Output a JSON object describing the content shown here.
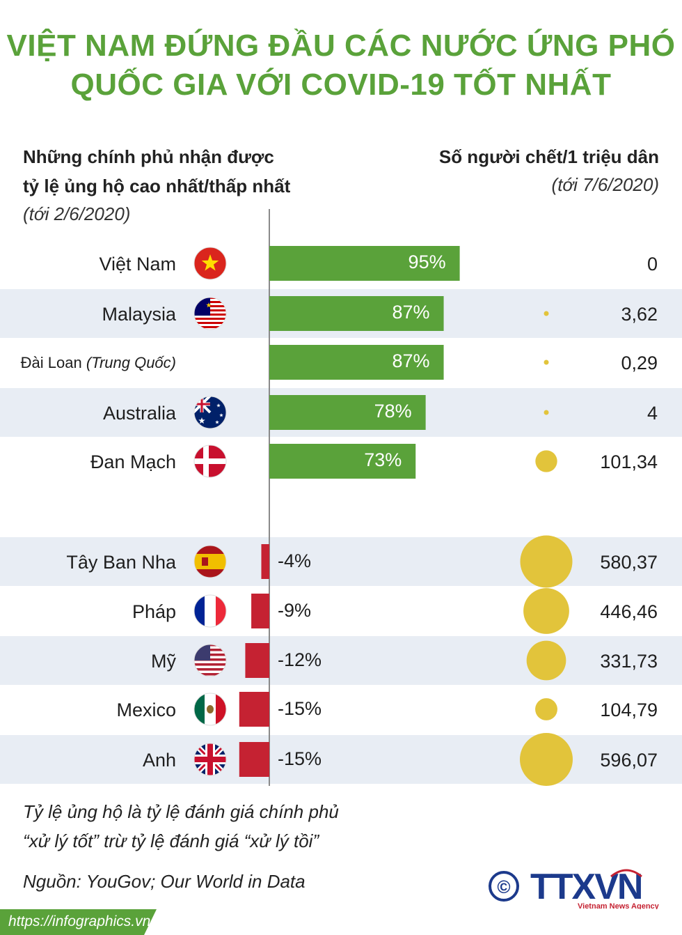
{
  "title": {
    "line1": "VIỆT NAM ĐỨNG ĐẦU CÁC NƯỚC ỨNG PHÓ",
    "line2": "QUỐC GIA VỚI COVID-19 TỐT NHẤT"
  },
  "left_header": {
    "line1": "Những chính phủ nhận được",
    "line2": "tỷ lệ ủng hộ cao nhất/thấp nhất",
    "date": "(tới 2/6/2020)"
  },
  "right_header": {
    "line1": "Số người chết/1 triệu dân",
    "date": "(tới 7/6/2020)"
  },
  "chart_data": {
    "type": "bar",
    "title": "Việt Nam đứng đầu các nước ứng phó quốc gia với COVID-19 tốt nhất",
    "series_approval_name": "Tỷ lệ ủng hộ (%)",
    "series_deaths_name": "Số người chết/1 triệu dân",
    "rows": [
      {
        "country": "Việt Nam",
        "suffix": "",
        "flag": "vietnam-flag",
        "approval": 95,
        "approval_label": "95%",
        "deaths": 0,
        "deaths_label": "0"
      },
      {
        "country": "Malaysia",
        "suffix": "",
        "flag": "malaysia-flag",
        "approval": 87,
        "approval_label": "87%",
        "deaths": 3.62,
        "deaths_label": "3,62"
      },
      {
        "country": "Đài Loan ",
        "suffix": "(Trung Quốc)",
        "flag": "",
        "approval": 87,
        "approval_label": "87%",
        "deaths": 0.29,
        "deaths_label": "0,29"
      },
      {
        "country": "Australia",
        "suffix": "",
        "flag": "australia-flag",
        "approval": 78,
        "approval_label": "78%",
        "deaths": 4,
        "deaths_label": "4"
      },
      {
        "country": "Đan Mạch",
        "suffix": "",
        "flag": "denmark-flag",
        "approval": 73,
        "approval_label": "73%",
        "deaths": 101.34,
        "deaths_label": "101,34"
      },
      {
        "country": "Tây Ban Nha",
        "suffix": "",
        "flag": "spain-flag",
        "approval": -4,
        "approval_label": "-4%",
        "deaths": 580.37,
        "deaths_label": "580,37"
      },
      {
        "country": "Pháp",
        "suffix": "",
        "flag": "france-flag",
        "approval": -9,
        "approval_label": "-9%",
        "deaths": 446.46,
        "deaths_label": "446,46"
      },
      {
        "country": "Mỹ",
        "suffix": "",
        "flag": "usa-flag",
        "approval": -12,
        "approval_label": "-12%",
        "deaths": 331.73,
        "deaths_label": "331,73"
      },
      {
        "country": "Mexico",
        "suffix": "",
        "flag": "mexico-flag",
        "approval": -15,
        "approval_label": "-15%",
        "deaths": 104.79,
        "deaths_label": "104,79"
      },
      {
        "country": "Anh",
        "suffix": "",
        "flag": "uk-flag",
        "approval": -15,
        "approval_label": "-15%",
        "deaths": 596.07,
        "deaths_label": "596,07"
      }
    ]
  },
  "notes": {
    "line1": "Tỷ lệ ủng hộ là tỷ lệ đánh giá chính phủ",
    "line2": "“xử lý tốt” trừ tỷ lệ đánh giá “xử lý tồi”",
    "source": "Nguồn: YouGov; Our World in Data"
  },
  "footer": {
    "url": "https://infographics.vn/",
    "logo_text": "TTXVN",
    "logo_sub": "Vietnam News Agency",
    "copyright_symbol": "©"
  },
  "colors": {
    "title": "#5aa23a",
    "positive_bar": "#5aa23a",
    "negative_bar": "#c52232",
    "bubble": "#e2c43b",
    "band": "#e8edf4",
    "logo": "#1c3a8c"
  }
}
